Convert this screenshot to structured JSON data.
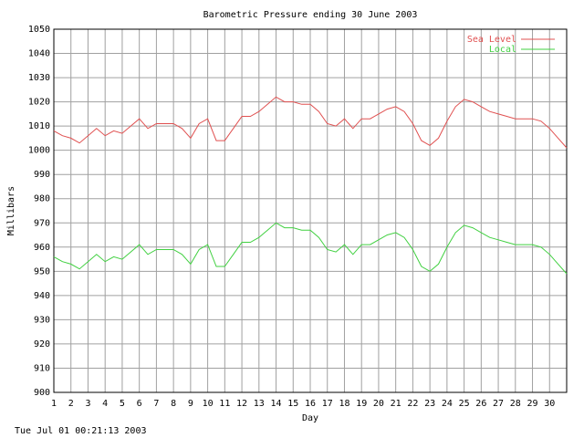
{
  "chart_data": {
    "type": "line",
    "title": "Barometric Pressure ending 30 June 2003",
    "x_label": "Day",
    "y_label": "Millibars",
    "annotation": "Tue Jul 01 00:21:13 2003",
    "x": [
      1,
      1.5,
      2,
      2.5,
      3,
      3.5,
      4,
      4.5,
      5,
      5.5,
      6,
      6.5,
      7,
      7.5,
      8,
      8.5,
      9,
      9.5,
      10,
      10.5,
      11,
      11.5,
      12,
      12.5,
      13,
      13.5,
      14,
      14.5,
      15,
      15.5,
      16,
      16.5,
      17,
      17.5,
      18,
      18.5,
      19,
      19.5,
      20,
      20.5,
      21,
      21.5,
      22,
      22.5,
      23,
      23.5,
      24,
      24.5,
      25,
      25.5,
      26,
      26.5,
      27,
      27.5,
      28,
      28.5,
      29,
      29.5,
      30,
      30.5,
      31
    ],
    "series": [
      {
        "name": "Sea Level",
        "color": "#e05050",
        "values": [
          1008,
          1006,
          1005,
          1003,
          1006,
          1009,
          1006,
          1008,
          1007,
          1010,
          1013,
          1009,
          1011,
          1011,
          1011,
          1009,
          1005,
          1011,
          1013,
          1004,
          1004,
          1009,
          1014,
          1014,
          1016,
          1019,
          1022,
          1020,
          1020,
          1019,
          1019,
          1016,
          1011,
          1010,
          1013,
          1009,
          1013,
          1013,
          1015,
          1017,
          1018,
          1016,
          1011,
          1004,
          1002,
          1005,
          1012,
          1018,
          1021,
          1020,
          1018,
          1016,
          1015,
          1014,
          1013,
          1013,
          1013,
          1012,
          1009,
          1005,
          1001
        ]
      },
      {
        "name": "Local",
        "color": "#40d040",
        "values": [
          956,
          954,
          953,
          951,
          954,
          957,
          954,
          956,
          955,
          958,
          961,
          957,
          959,
          959,
          959,
          957,
          953,
          959,
          961,
          952,
          952,
          957,
          962,
          962,
          964,
          967,
          970,
          968,
          968,
          967,
          967,
          964,
          959,
          958,
          961,
          957,
          961,
          961,
          963,
          965,
          966,
          964,
          959,
          952,
          950,
          953,
          960,
          966,
          969,
          968,
          966,
          964,
          963,
          962,
          961,
          961,
          961,
          960,
          957,
          953,
          949
        ]
      }
    ],
    "xlim": [
      1,
      31
    ],
    "xticks": [
      1,
      2,
      3,
      4,
      5,
      6,
      7,
      8,
      9,
      10,
      11,
      12,
      13,
      14,
      15,
      16,
      17,
      18,
      19,
      20,
      21,
      22,
      23,
      24,
      25,
      26,
      27,
      28,
      29,
      30
    ],
    "ylim": [
      900,
      1050
    ],
    "yticks": [
      900,
      910,
      920,
      930,
      940,
      950,
      960,
      970,
      980,
      990,
      1000,
      1010,
      1020,
      1030,
      1040,
      1050
    ],
    "grid": true,
    "legend": "top-right"
  }
}
